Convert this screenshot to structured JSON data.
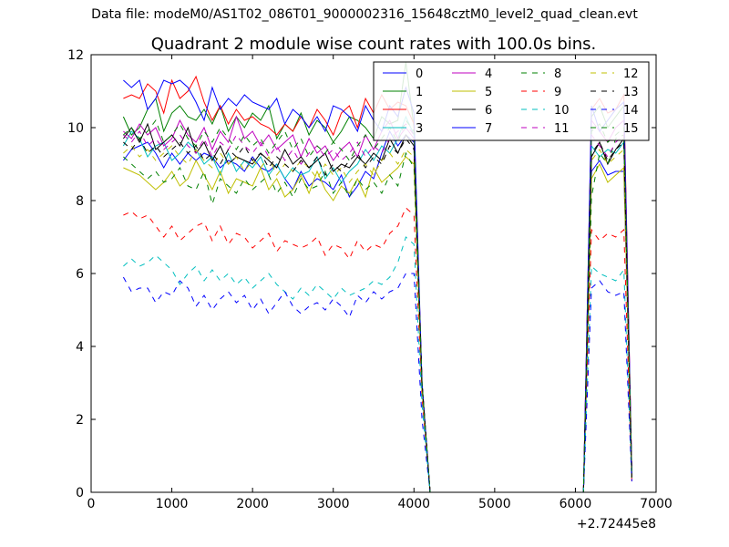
{
  "figure": {
    "suptitle": "Data file: modeM0/AS1T02_086T01_9000002316_15648cztM0_level2_quad_clean.evt"
  },
  "chart_data": {
    "type": "line",
    "title": "Quadrant 2 module wise count rates with 100.0s bins.",
    "xlabel": "",
    "ylabel": "",
    "xlim": [
      0,
      7000
    ],
    "ylim": [
      0,
      12
    ],
    "x_offset_label": "+2.72445e8",
    "x_ticks": [
      0,
      1000,
      2000,
      3000,
      4000,
      5000,
      6000,
      7000
    ],
    "y_ticks": [
      0,
      2,
      4,
      6,
      8,
      10,
      12
    ],
    "grid": false,
    "legend_position": "top-right",
    "legend_columns": 4,
    "x": [
      400,
      500,
      600,
      700,
      800,
      900,
      1000,
      1100,
      1200,
      1300,
      1400,
      1500,
      1600,
      1700,
      1800,
      1900,
      2000,
      2100,
      2200,
      2300,
      2400,
      2500,
      2600,
      2700,
      2800,
      2900,
      3000,
      3100,
      3200,
      3300,
      3400,
      3500,
      3600,
      3700,
      3800,
      3900,
      4000,
      4100,
      4200,
      4300,
      4400,
      4500,
      4600,
      4700,
      4800,
      4900,
      5000,
      5100,
      5200,
      5300,
      5400,
      5500,
      5600,
      5700,
      5800,
      5900,
      6000,
      6100,
      6200,
      6300,
      6400,
      6500,
      6600,
      6700
    ],
    "series": [
      {
        "name": "0",
        "color": "#0000ff",
        "style": "solid",
        "values": [
          9.1,
          9.4,
          9.5,
          9.6,
          9.3,
          8.9,
          9.3,
          9.0,
          9.3,
          9.1,
          9.3,
          9.2,
          8.9,
          9.1,
          9.0,
          8.8,
          9.2,
          8.9,
          8.8,
          9.0,
          8.6,
          8.3,
          8.8,
          8.4,
          8.6,
          8.5,
          8.3,
          8.7,
          8.1,
          8.4,
          8.8,
          8.6,
          9.3,
          9.9,
          9.5,
          9.8,
          9.6,
          2.9,
          0.0,
          0,
          0,
          0,
          0,
          0,
          0,
          0,
          0,
          0,
          0,
          0,
          0,
          0,
          0,
          0,
          0,
          0,
          0,
          0,
          8.8,
          9.1,
          8.7,
          8.8,
          8.8,
          0.5
        ]
      },
      {
        "name": "1",
        "color": "#008000",
        "style": "solid",
        "values": [
          10.3,
          9.8,
          10.0,
          10.5,
          10.8,
          9.9,
          10.4,
          10.6,
          10.3,
          10.2,
          10.5,
          10.1,
          10.6,
          9.9,
          10.3,
          10.0,
          10.4,
          10.2,
          10.6,
          9.7,
          10.1,
          9.9,
          10.4,
          9.8,
          10.2,
          10.0,
          9.6,
          9.9,
          10.3,
          10.2,
          10.0,
          9.7,
          10.3,
          10.1,
          10.2,
          11.8,
          10.0,
          2.9,
          0.0,
          0,
          0,
          0,
          0,
          0,
          0,
          0,
          0,
          0,
          0,
          0,
          0,
          0,
          0,
          0,
          0,
          0,
          0,
          0,
          10.3,
          10.6,
          10.0,
          10.3,
          10.6,
          0.4
        ]
      },
      {
        "name": "2",
        "color": "#ff0000",
        "style": "solid",
        "values": [
          10.8,
          10.9,
          10.8,
          11.2,
          11.0,
          10.4,
          11.3,
          10.8,
          11.0,
          11.4,
          10.7,
          10.2,
          10.6,
          10.1,
          10.5,
          10.2,
          10.3,
          10.1,
          10.0,
          9.8,
          10.1,
          9.9,
          10.3,
          10.0,
          10.5,
          10.2,
          9.8,
          10.4,
          10.6,
          10.0,
          10.8,
          10.4,
          10.9,
          10.5,
          10.7,
          10.6,
          10.1,
          3.0,
          0.0,
          0,
          0,
          0,
          0,
          0,
          0,
          0,
          0,
          0,
          0,
          0,
          0,
          0,
          0,
          0,
          0,
          0,
          0,
          0,
          10.5,
          10.8,
          10.4,
          10.5,
          10.9,
          0.5
        ]
      },
      {
        "name": "3",
        "color": "#00bfbf",
        "style": "solid",
        "values": [
          9.5,
          9.9,
          9.7,
          9.2,
          9.5,
          9.6,
          9.1,
          9.3,
          9.6,
          9.4,
          9.0,
          9.2,
          8.7,
          9.3,
          8.8,
          9.1,
          8.9,
          9.2,
          8.7,
          9.0,
          8.6,
          8.9,
          8.7,
          8.8,
          9.2,
          8.6,
          8.9,
          8.5,
          8.8,
          9.0,
          9.4,
          9.1,
          9.5,
          9.3,
          9.7,
          10.3,
          9.8,
          3.0,
          0.0,
          0,
          0,
          0,
          0,
          0,
          0,
          0,
          0,
          0,
          0,
          0,
          0,
          0,
          0,
          0,
          0,
          0,
          0,
          0,
          9.5,
          9.2,
          9.4,
          9.3,
          9.6,
          0.4
        ]
      },
      {
        "name": "4",
        "color": "#bf00bf",
        "style": "solid",
        "values": [
          9.9,
          9.7,
          10.1,
          9.8,
          10.0,
          9.5,
          9.7,
          10.2,
          9.8,
          9.6,
          10.0,
          9.4,
          9.9,
          9.6,
          10.3,
          9.7,
          9.9,
          9.5,
          9.8,
          9.4,
          9.6,
          9.8,
          9.2,
          9.7,
          9.3,
          9.5,
          9.1,
          9.4,
          9.6,
          9.2,
          9.8,
          9.4,
          9.9,
          10.2,
          9.7,
          10.0,
          9.7,
          3.0,
          0.0,
          0,
          0,
          0,
          0,
          0,
          0,
          0,
          0,
          0,
          0,
          0,
          0,
          0,
          0,
          0,
          0,
          0,
          0,
          0,
          10.2,
          9.9,
          9.6,
          10.0,
          10.2,
          0.5
        ]
      },
      {
        "name": "5",
        "color": "#bfbf00",
        "style": "solid",
        "values": [
          8.9,
          8.8,
          8.7,
          8.5,
          8.3,
          8.5,
          8.8,
          8.4,
          8.6,
          9.1,
          8.7,
          8.3,
          8.8,
          8.2,
          8.6,
          8.5,
          8.4,
          8.9,
          8.3,
          8.6,
          8.1,
          8.3,
          8.7,
          8.2,
          8.8,
          8.3,
          8.0,
          8.4,
          8.2,
          8.6,
          8.1,
          8.9,
          8.5,
          8.7,
          8.9,
          9.2,
          9.0,
          2.9,
          0.0,
          0,
          0,
          0,
          0,
          0,
          0,
          0,
          0,
          0,
          0,
          0,
          0,
          0,
          0,
          0,
          0,
          0,
          0,
          0,
          8.6,
          9.0,
          8.5,
          8.7,
          8.9,
          0.4
        ]
      },
      {
        "name": "6",
        "color": "#000000",
        "style": "solid",
        "values": [
          9.7,
          10.0,
          9.6,
          10.1,
          9.4,
          9.6,
          9.8,
          9.5,
          10.0,
          9.3,
          9.6,
          9.1,
          9.5,
          9.0,
          9.2,
          9.1,
          9.0,
          9.3,
          9.1,
          8.9,
          9.4,
          9.0,
          9.2,
          8.9,
          9.1,
          9.3,
          8.8,
          9.0,
          8.9,
          9.2,
          9.0,
          9.3,
          9.1,
          9.7,
          9.3,
          9.8,
          9.5,
          3.0,
          0.0,
          0,
          0,
          0,
          0,
          0,
          0,
          0,
          0,
          0,
          0,
          0,
          0,
          0,
          0,
          0,
          0,
          0,
          0,
          0,
          9.2,
          9.6,
          9.0,
          9.4,
          9.7,
          0.4
        ]
      },
      {
        "name": "7",
        "color": "#0000ff",
        "style": "solid",
        "values": [
          11.3,
          11.1,
          11.3,
          10.5,
          10.8,
          11.3,
          11.2,
          11.3,
          11.1,
          10.7,
          10.2,
          11.1,
          10.5,
          10.8,
          10.6,
          10.9,
          10.7,
          10.6,
          10.5,
          10.8,
          10.1,
          10.5,
          10.3,
          10.0,
          10.3,
          9.9,
          10.6,
          10.5,
          10.3,
          9.9,
          10.6,
          10.2,
          9.9,
          10.6,
          10.3,
          11.1,
          10.4,
          3.0,
          0.0,
          0,
          0,
          0,
          0,
          0,
          0,
          0,
          0,
          0,
          0,
          0,
          0,
          0,
          0,
          0,
          0,
          0,
          0,
          0,
          10.6,
          9.9,
          10.2,
          10.5,
          10.7,
          0.5
        ]
      },
      {
        "name": "8",
        "color": "#008000",
        "style": "dashed",
        "values": [
          9.2,
          9.0,
          8.8,
          8.6,
          8.8,
          8.5,
          8.6,
          8.9,
          8.4,
          8.3,
          8.8,
          7.9,
          8.6,
          8.4,
          8.2,
          8.6,
          8.3,
          8.5,
          8.7,
          8.2,
          8.5,
          8.1,
          8.6,
          8.3,
          8.4,
          8.8,
          8.2,
          8.5,
          8.1,
          8.6,
          8.3,
          8.5,
          8.2,
          8.7,
          8.4,
          9.3,
          8.9,
          2.8,
          0.0,
          0,
          0,
          0,
          0,
          0,
          0,
          0,
          0,
          0,
          0,
          0,
          0,
          0,
          0,
          0,
          0,
          0,
          0,
          0,
          8.1,
          9.3,
          9.0,
          9.7,
          9.8,
          0.3
        ]
      },
      {
        "name": "9",
        "color": "#ff0000",
        "style": "dashed",
        "values": [
          7.6,
          7.7,
          7.5,
          7.6,
          7.3,
          7.0,
          7.3,
          6.9,
          7.1,
          7.3,
          7.4,
          6.9,
          7.3,
          6.8,
          7.1,
          7.0,
          6.7,
          6.9,
          7.1,
          6.6,
          6.9,
          6.8,
          6.7,
          6.8,
          7.0,
          6.5,
          6.8,
          6.7,
          6.4,
          6.9,
          6.6,
          6.8,
          6.7,
          7.1,
          7.3,
          7.8,
          7.6,
          2.6,
          0.0,
          0,
          0,
          0,
          0,
          0,
          0,
          0,
          0,
          0,
          0,
          0,
          0,
          0,
          0,
          0,
          0,
          0,
          0,
          0,
          7.2,
          6.9,
          7.1,
          7.0,
          7.2,
          0.3
        ]
      },
      {
        "name": "10",
        "color": "#00bfbf",
        "style": "dashed",
        "values": [
          6.2,
          6.4,
          6.2,
          6.3,
          6.5,
          6.3,
          6.1,
          5.7,
          6.0,
          6.2,
          5.8,
          6.1,
          5.8,
          6.0,
          5.7,
          5.9,
          5.6,
          5.8,
          6.0,
          5.7,
          5.5,
          5.3,
          5.6,
          5.4,
          5.7,
          5.5,
          5.3,
          5.6,
          5.4,
          5.5,
          5.6,
          5.8,
          5.7,
          5.9,
          6.3,
          7.0,
          6.8,
          2.4,
          0.0,
          0,
          0,
          0,
          0,
          0,
          0,
          0,
          0,
          0,
          0,
          0,
          0,
          0,
          0,
          0,
          0,
          0,
          0,
          0,
          6.2,
          6.0,
          5.9,
          5.8,
          6.1,
          0.3
        ]
      },
      {
        "name": "11",
        "color": "#bf00bf",
        "style": "dashed",
        "values": [
          9.8,
          9.6,
          9.9,
          9.5,
          9.7,
          9.4,
          9.6,
          9.8,
          9.5,
          9.3,
          9.7,
          9.2,
          9.6,
          9.4,
          9.8,
          9.5,
          9.3,
          9.6,
          9.2,
          9.5,
          9.1,
          9.4,
          9.0,
          9.3,
          9.5,
          9.2,
          9.4,
          9.1,
          9.3,
          9.6,
          9.2,
          9.5,
          9.3,
          9.7,
          9.9,
          10.1,
          9.8,
          3.0,
          0.0,
          0,
          0,
          0,
          0,
          0,
          0,
          0,
          0,
          0,
          0,
          0,
          0,
          0,
          0,
          0,
          0,
          0,
          0,
          0,
          9.8,
          9.5,
          9.2,
          9.6,
          9.8,
          0.4
        ]
      },
      {
        "name": "12",
        "color": "#bfbf00",
        "style": "dashed",
        "values": [
          9.3,
          9.5,
          9.2,
          9.4,
          9.1,
          9.3,
          9.5,
          9.2,
          9.0,
          9.4,
          9.1,
          8.9,
          9.3,
          9.0,
          9.2,
          8.8,
          9.1,
          8.9,
          9.2,
          8.7,
          9.0,
          8.8,
          9.1,
          8.9,
          8.6,
          9.0,
          8.7,
          8.9,
          8.5,
          8.8,
          9.0,
          8.7,
          9.1,
          9.3,
          9.0,
          9.4,
          9.2,
          2.9,
          0.0,
          0,
          0,
          0,
          0,
          0,
          0,
          0,
          0,
          0,
          0,
          0,
          0,
          0,
          0,
          0,
          0,
          0,
          0,
          0,
          9.1,
          9.4,
          9.0,
          9.2,
          9.4,
          0.4
        ]
      },
      {
        "name": "13",
        "color": "#000000",
        "style": "dashed",
        "values": [
          9.6,
          9.4,
          9.7,
          9.3,
          9.5,
          9.2,
          9.4,
          9.6,
          9.3,
          9.5,
          9.1,
          9.3,
          9.0,
          9.4,
          9.2,
          9.5,
          9.1,
          9.3,
          8.9,
          9.2,
          9.0,
          8.8,
          9.1,
          8.9,
          9.2,
          8.7,
          9.0,
          8.8,
          9.1,
          9.3,
          8.9,
          9.2,
          9.0,
          9.5,
          9.3,
          9.7,
          9.4,
          3.0,
          0.0,
          0,
          0,
          0,
          0,
          0,
          0,
          0,
          0,
          0,
          0,
          0,
          0,
          0,
          0,
          0,
          0,
          0,
          0,
          0,
          9.3,
          9.6,
          9.1,
          9.4,
          9.6,
          0.4
        ]
      },
      {
        "name": "14",
        "color": "#0000ff",
        "style": "dashed",
        "values": [
          5.9,
          5.5,
          5.6,
          5.6,
          5.2,
          5.5,
          5.4,
          5.8,
          5.6,
          5.1,
          5.4,
          5.0,
          5.3,
          5.5,
          5.2,
          5.4,
          5.0,
          5.3,
          4.9,
          5.2,
          5.5,
          5.1,
          4.9,
          5.1,
          5.2,
          5.0,
          5.3,
          5.1,
          4.8,
          5.4,
          5.2,
          5.5,
          5.3,
          5.5,
          5.6,
          6.0,
          6.0,
          2.0,
          0.0,
          0,
          0,
          0,
          0,
          0,
          0,
          0,
          0,
          0,
          0,
          0,
          0,
          0,
          0,
          0,
          0,
          0,
          0,
          0,
          5.6,
          5.8,
          5.5,
          5.4,
          5.5,
          0.3
        ]
      },
      {
        "name": "15",
        "color": "#008000",
        "style": "dashed",
        "values": [
          9.8,
          10.0,
          9.7,
          9.9,
          10.2,
          9.6,
          9.8,
          10.1,
          9.7,
          9.5,
          9.9,
          9.6,
          10.0,
          9.7,
          9.4,
          9.8,
          9.5,
          9.7,
          9.3,
          9.6,
          9.9,
          9.4,
          9.7,
          9.2,
          9.5,
          9.3,
          9.6,
          9.4,
          9.1,
          9.5,
          9.8,
          9.4,
          9.7,
          10.0,
          9.6,
          10.2,
          9.9,
          3.0,
          0.0,
          0,
          0,
          0,
          0,
          0,
          0,
          0,
          0,
          0,
          0,
          0,
          0,
          0,
          0,
          0,
          0,
          0,
          0,
          0,
          9.9,
          10.1,
          9.6,
          9.8,
          10.0,
          0.4
        ]
      }
    ]
  }
}
